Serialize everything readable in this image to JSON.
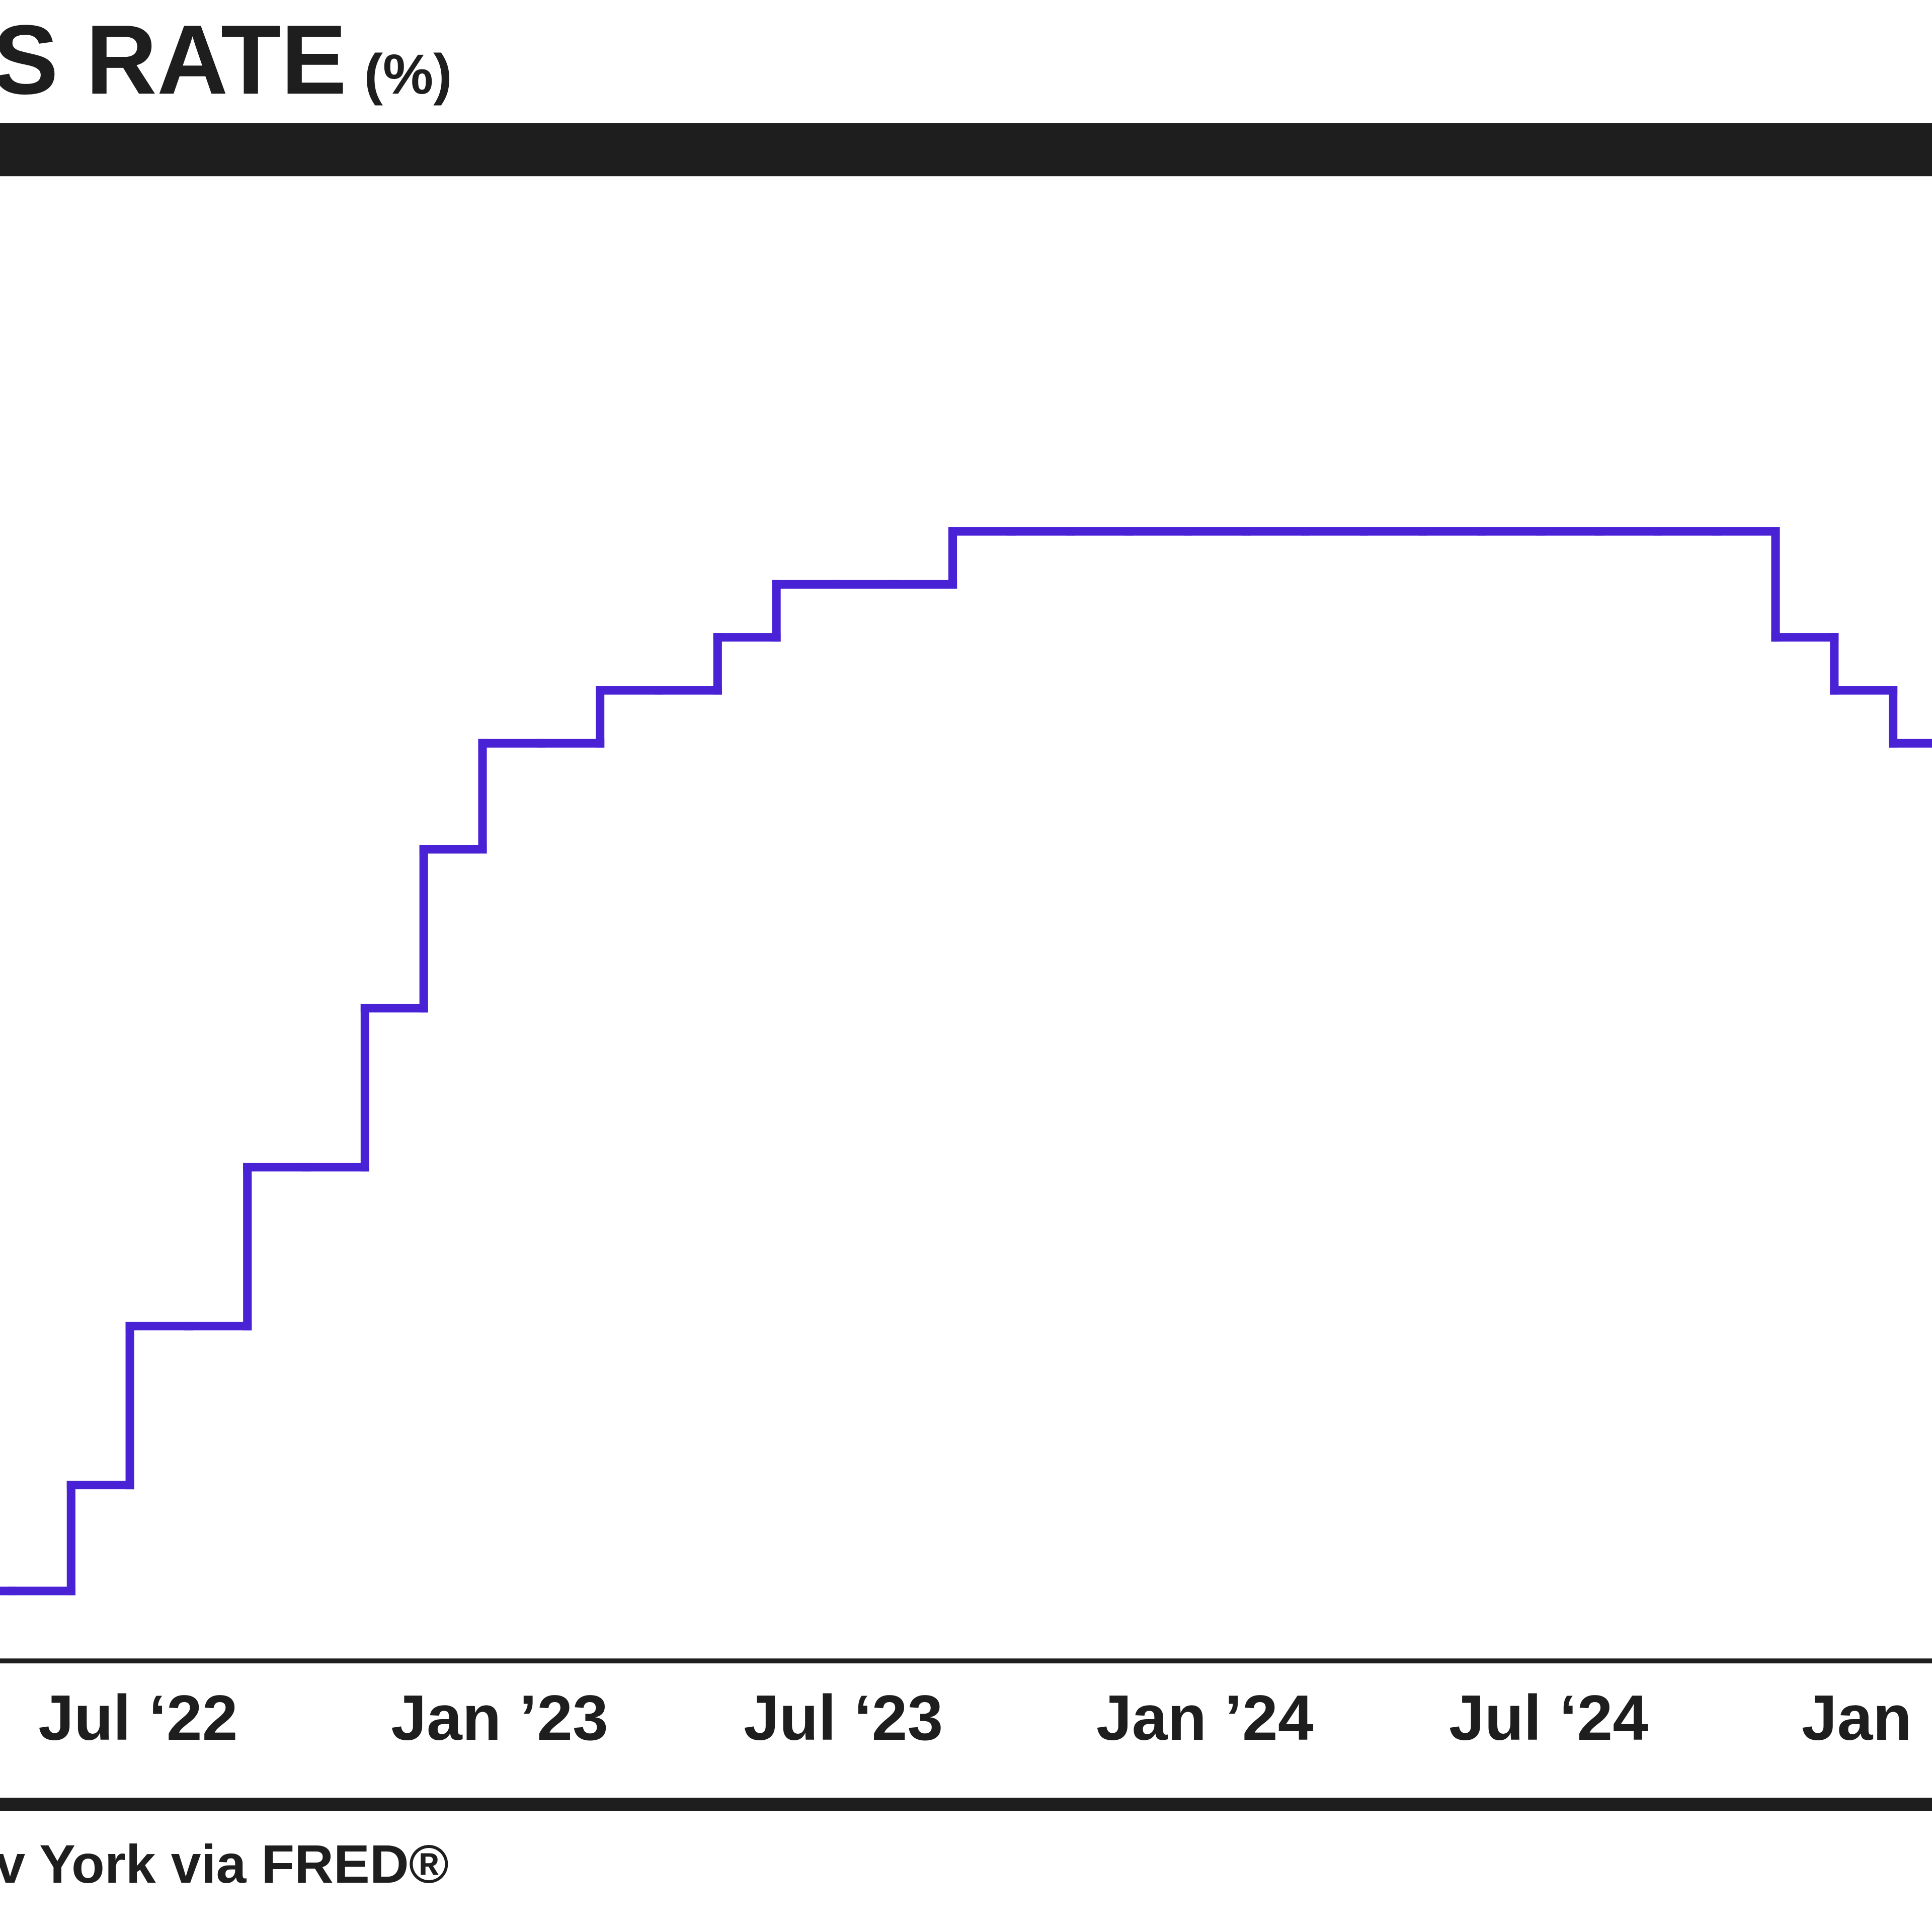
{
  "chart_data": {
    "type": "step-line",
    "title": "S RATE",
    "title_unit": "(%)",
    "source": "v York via FRED®",
    "categories": [
      null,
      null,
      null,
      null,
      "Jul ‘22",
      null,
      null,
      null,
      null,
      null,
      "Jan ’23",
      null,
      null,
      null,
      null,
      null,
      "Jul ‘23",
      null,
      null,
      null,
      null,
      null,
      "Jan ’24",
      null,
      null,
      null,
      null,
      null,
      "Jul ‘24",
      null,
      null,
      null,
      null,
      null,
      "Jan"
    ],
    "series": [
      {
        "color": "#4a22d6",
        "values": [
          0.33,
          0.33,
          0.83,
          1.58,
          1.58,
          2.33,
          2.33,
          3.08,
          3.83,
          4.33,
          4.33,
          4.58,
          4.58,
          4.83,
          5.08,
          5.08,
          5.08,
          5.33,
          5.33,
          5.33,
          5.33,
          5.33,
          5.33,
          5.33,
          5.33,
          5.33,
          5.33,
          5.33,
          5.33,
          5.33,
          5.33,
          4.83,
          4.58,
          4.33,
          4.33
        ]
      }
    ],
    "ylim": [
      0,
      7
    ]
  }
}
